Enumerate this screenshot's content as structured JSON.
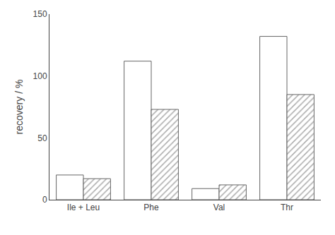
{
  "chart_data": {
    "type": "bar",
    "categories": [
      "Ile + Leu",
      "Phe",
      "Val",
      "Thr"
    ],
    "series": [
      {
        "color": "#ffffff",
        "values": [
          20,
          112,
          9,
          132
        ]
      },
      {
        "color": "#ffffff",
        "values": [
          17,
          73,
          12,
          85
        ]
      }
    ],
    "ylabel": "recovery / %",
    "ylim": [
      0,
      150
    ],
    "yticks": [
      0,
      50,
      100,
      150
    ],
    "grid": false
  }
}
